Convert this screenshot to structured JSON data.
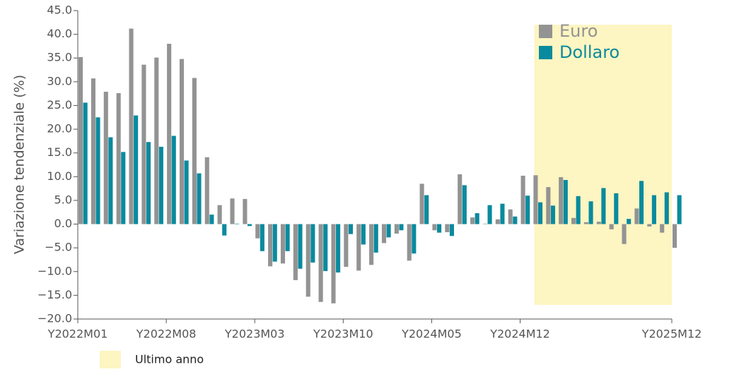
{
  "chart_data": {
    "type": "bar",
    "y_label": "Variazione tendenziale (%)",
    "categories": [
      "Y2022M01",
      null,
      null,
      null,
      null,
      null,
      null,
      "Y2022M08",
      null,
      null,
      null,
      null,
      null,
      null,
      "Y2023M03",
      null,
      null,
      null,
      null,
      null,
      null,
      "Y2023M10",
      null,
      null,
      null,
      null,
      null,
      null,
      "Y2024M05",
      null,
      null,
      null,
      null,
      null,
      null,
      "Y2024M12",
      null,
      null,
      null,
      null,
      null,
      null,
      null,
      null,
      null,
      null,
      null,
      "Y2025M12"
    ],
    "series": [
      {
        "name": "Euro",
        "color": "#939393",
        "values": [
          35.2,
          30.7,
          27.9,
          27.6,
          41.2,
          33.6,
          35.1,
          38.0,
          34.8,
          30.8,
          14.1,
          4.0,
          5.4,
          5.3,
          -3.0,
          -8.9,
          -8.3,
          -11.8,
          -15.3,
          -16.4,
          -16.7,
          -9.0,
          -9.8,
          -8.6,
          -4.0,
          -2.0,
          -7.7,
          8.5,
          -1.3,
          -1.7,
          10.5,
          1.4,
          0.1,
          1.0,
          3.1,
          10.2,
          10.3,
          7.8,
          9.9,
          1.3,
          0.4,
          0.5,
          -1.1,
          -4.2,
          3.3,
          -0.5,
          -1.8,
          -5.0
        ]
      },
      {
        "name": "Dollaro",
        "color": "#0a8a9e",
        "values": [
          25.6,
          22.5,
          18.3,
          15.2,
          22.9,
          17.3,
          16.3,
          18.6,
          13.4,
          10.7,
          2.0,
          -2.4,
          0.1,
          -0.4,
          -5.7,
          -7.9,
          -5.7,
          -9.4,
          -8.1,
          -9.9,
          -10.2,
          -2.1,
          -4.3,
          -6.0,
          -2.8,
          -1.3,
          -6.2,
          6.1,
          -1.8,
          -2.5,
          8.2,
          2.3,
          4.0,
          4.3,
          1.6,
          6.0,
          4.6,
          3.9,
          9.3,
          5.9,
          4.8,
          7.6,
          6.5,
          1.1,
          9.1,
          6.1,
          6.7,
          6.1
        ]
      }
    ],
    "highlight": {
      "label": "Ultimo anno",
      "color": "#fdf5c2",
      "range": [
        36,
        47
      ]
    },
    "ylim": [
      -20,
      45
    ],
    "yticks": [
      {
        "value": -20,
        "label": "−20.0"
      },
      {
        "value": -15,
        "label": "−15.0"
      },
      {
        "value": -10,
        "label": "−10.0"
      },
      {
        "value": -5,
        "label": "−5.0"
      },
      {
        "value": 0,
        "label": "0.0"
      },
      {
        "value": 5,
        "label": "5.0"
      },
      {
        "value": 10,
        "label": "10.0"
      },
      {
        "value": 15,
        "label": "15.0"
      },
      {
        "value": 20,
        "label": "20.0"
      },
      {
        "value": 25,
        "label": "25.0"
      },
      {
        "value": 30,
        "label": "30.0"
      },
      {
        "value": 35,
        "label": "35.0"
      },
      {
        "value": 40,
        "label": "40.0"
      },
      {
        "value": 45,
        "label": "45.0"
      }
    ],
    "grid": false,
    "legend": "top-right"
  }
}
